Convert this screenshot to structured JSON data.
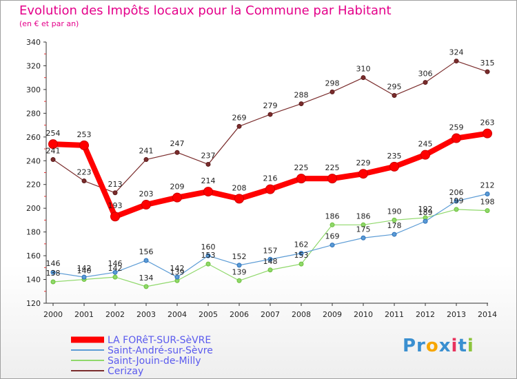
{
  "title": "Evolution des Impôts locaux pour la Commune par Habitant",
  "subtitle": "(en € et par an)",
  "logo": {
    "parts": [
      "Pr",
      "o",
      "x",
      "i",
      "t",
      "i"
    ],
    "colors": [
      "#3a8fd0",
      "#f7a600",
      "#3a8fd0",
      "#e8335d",
      "#3a8fd0",
      "#8cc43c"
    ]
  },
  "chart_data": {
    "type": "line",
    "x": [
      2000,
      2001,
      2002,
      2003,
      2004,
      2005,
      2006,
      2007,
      2008,
      2009,
      2010,
      2011,
      2012,
      2013,
      2014
    ],
    "ylim": [
      120,
      340
    ],
    "yticks": [
      120,
      140,
      160,
      180,
      200,
      220,
      240,
      260,
      280,
      300,
      320,
      340
    ],
    "grid": false,
    "legend": "bottom-left",
    "series": [
      {
        "name": "LA FORêT-SUR-SèVRE",
        "color": "#ff0000",
        "values": [
          254,
          253,
          193,
          203,
          209,
          214,
          208,
          216,
          225,
          225,
          229,
          235,
          245,
          259,
          263
        ]
      },
      {
        "name": "Saint-André-sur-Sèvre",
        "color": "#5b9bd5",
        "values": [
          146,
          142,
          146,
          156,
          142,
          160,
          152,
          157,
          162,
          169,
          175,
          178,
          189,
          206,
          212
        ]
      },
      {
        "name": "Saint-Jouin-de-Milly",
        "color": "#8fd86a",
        "values": [
          138,
          140,
          142,
          134,
          139,
          153,
          139,
          148,
          153,
          186,
          186,
          190,
          192,
          199,
          198
        ]
      },
      {
        "name": "Cerizay",
        "color": "#7a2c2c",
        "values": [
          241,
          223,
          213,
          241,
          247,
          237,
          269,
          279,
          288,
          298,
          310,
          295,
          306,
          324,
          315
        ]
      }
    ]
  }
}
